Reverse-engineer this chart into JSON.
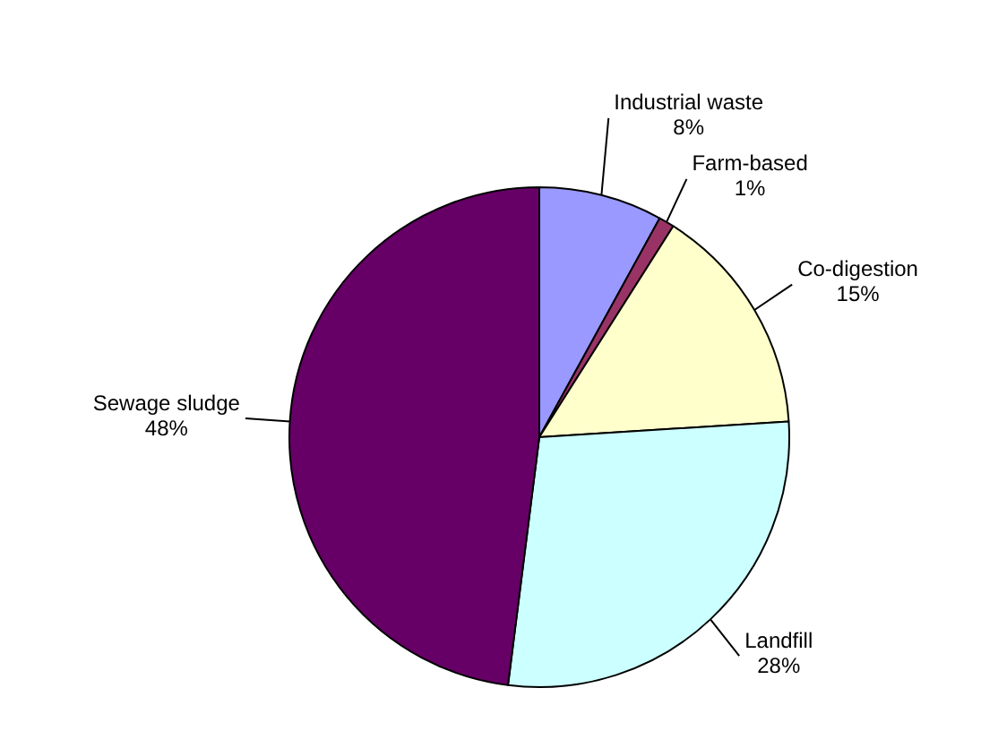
{
  "chart_data": {
    "type": "pie",
    "categories": [
      "Industrial waste",
      "Farm-based",
      "Co-digestion",
      "Landfill",
      "Sewage sludge"
    ],
    "values": [
      8,
      1,
      15,
      28,
      48
    ],
    "value_labels": [
      "8%",
      "1%",
      "15%",
      "28%",
      "48%"
    ],
    "colors": [
      "#9999ff",
      "#993366",
      "#ffffcc",
      "#ccffff",
      "#660066"
    ],
    "legend": false
  }
}
